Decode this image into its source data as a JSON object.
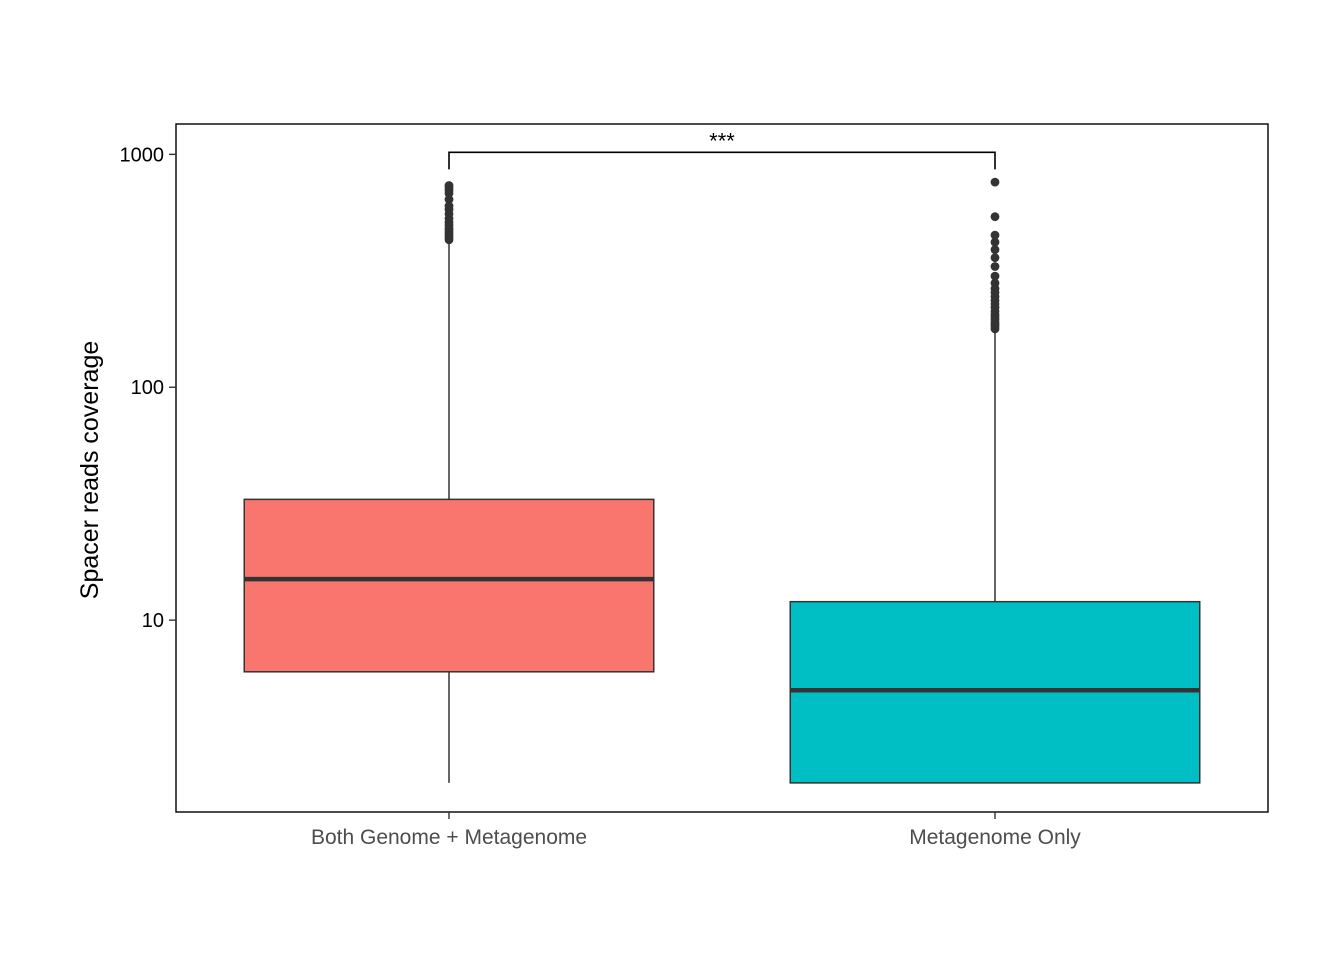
{
  "chart_data": {
    "type": "box",
    "title": "",
    "xlabel": "",
    "ylabel": "Spacer reads coverage",
    "yscale": "log10",
    "ylim": [
      1.5,
      1350
    ],
    "yticks": [
      10,
      100,
      1000
    ],
    "ytick_labels": [
      "10",
      "100",
      "1000"
    ],
    "categories": [
      "Both Genome + Metagenome",
      "Metagenome Only"
    ],
    "grid": false,
    "legend": "none",
    "boxes": [
      {
        "category": "Both Genome + Metagenome",
        "color": "#F8766D",
        "whisker_low": 2,
        "q1": 6,
        "median": 15,
        "q3": 33,
        "whisker_high": 420,
        "outliers": [
          430,
          440,
          450,
          460,
          470,
          480,
          495,
          510,
          530,
          555,
          580,
          600,
          640,
          680,
          700,
          720,
          735
        ]
      },
      {
        "category": "Metagenome Only",
        "color": "#00BFC4",
        "whisker_low": 2,
        "q1": 2,
        "median": 5,
        "q3": 12,
        "whisker_high": 175,
        "outliers": [
          178,
          182,
          186,
          190,
          195,
          200,
          205,
          212,
          220,
          228,
          236,
          245,
          255,
          265,
          280,
          300,
          330,
          360,
          390,
          420,
          450,
          540,
          760
        ]
      }
    ],
    "significance": {
      "label": "***",
      "from": "Both Genome + Metagenome",
      "to": "Metagenome Only",
      "y": 1000
    }
  }
}
